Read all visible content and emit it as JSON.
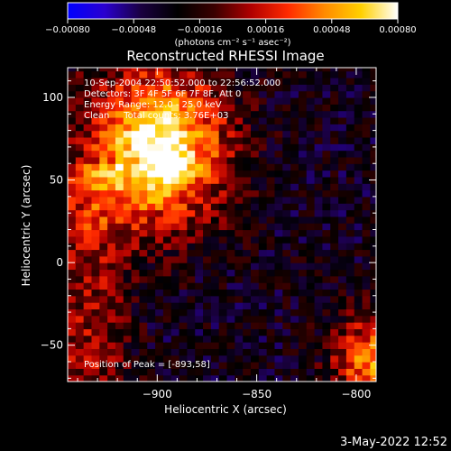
{
  "chart_data": {
    "type": "heatmap",
    "title": "Reconstructed RHESSI Image",
    "xlabel": "Heliocentric X (arcsec)",
    "ylabel": "Heliocentric Y (arcsec)",
    "xlim": [
      -945,
      -790
    ],
    "ylim": [
      -72,
      118
    ],
    "x_ticks": [
      -900,
      -850,
      -800
    ],
    "x_tick_labels": [
      "−900",
      "−850",
      "−800"
    ],
    "y_ticks": [
      -50,
      0,
      50,
      100
    ],
    "y_tick_labels": [
      "−50",
      "0",
      "50",
      "100"
    ],
    "colorbar": {
      "min": -0.0008,
      "max": 0.0008,
      "ticks": [
        "−0.00080",
        "−0.00048",
        "−0.00016",
        "0.00016",
        "0.00048",
        "0.00080"
      ],
      "unit_label": "(photons cm⁻² s⁻¹ asec⁻²)",
      "palette": [
        "#0000ff",
        "#2a00d0",
        "#1a0040",
        "#000000",
        "#3a0000",
        "#b00000",
        "#ff2a00",
        "#ff8a00",
        "#ffd000",
        "#ffffff"
      ]
    },
    "annotations": [
      "10-Sep-2004 22:50:52.000 to 22:56:52.000",
      "Detectors: 3F 4F 5F 6F 7F 8F, Att 0",
      "Energy Range: 12.0 - 25.0 keV",
      "Clean     Total counts: 3.76E+03"
    ],
    "peak_label": "Position of Peak = [-893,58]",
    "peak_position": [
      -893,
      58
    ],
    "source_regions": [
      {
        "region": "upper-left",
        "x": -900,
        "y": 70,
        "intensity": 0.0008
      },
      {
        "region": "lower-right",
        "x": -790,
        "y": -60,
        "intensity": 0.0005
      }
    ],
    "background_intensity": -0.0003
  },
  "footer": {
    "date": "3-May-2022 12:52"
  }
}
